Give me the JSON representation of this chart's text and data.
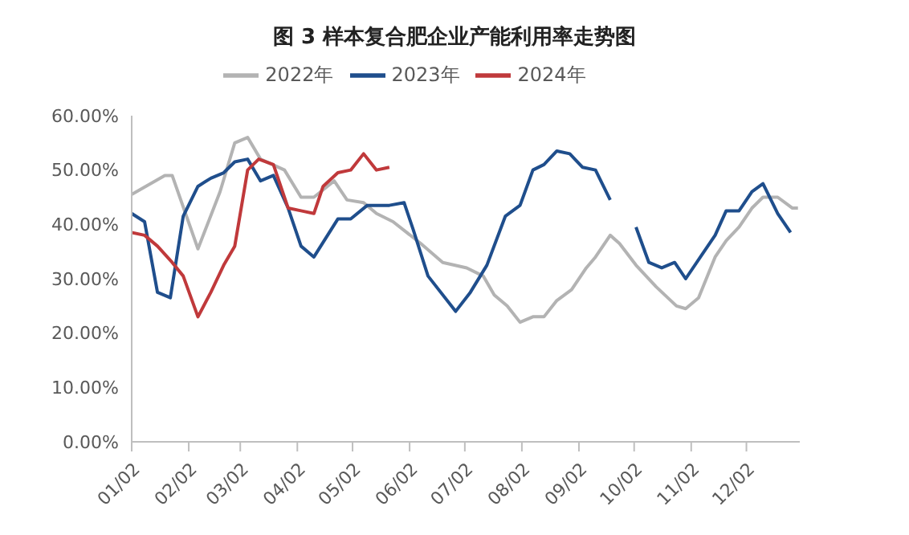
{
  "chart_data": {
    "type": "line",
    "title": "图 3  样本复合肥企业产能利用率走势图",
    "series": [
      {
        "name": "2022年",
        "color": "#b3b3b3",
        "x": [
          "--01-02",
          "--01-20",
          "--01-24",
          "--02-07",
          "--02-19",
          "--02-27",
          "--03-06",
          "--03-13",
          "--03-26",
          "--04-04",
          "--04-11",
          "--04-22",
          "--04-29",
          "--05-08",
          "--05-15",
          "--05-24",
          "--06-08",
          "--06-20",
          "--07-03",
          "--07-12",
          "--07-18",
          "--07-25",
          "--08-01",
          "--08-08",
          "--08-14",
          "--08-21",
          "--08-29",
          "--09-06",
          "--09-11",
          "--09-19",
          "--09-24",
          "--10-03",
          "--10-14",
          "--10-25",
          "--10-30",
          "--11-06",
          "--11-15",
          "--11-21",
          "--11-28",
          "--12-05",
          "--12-11",
          "--12-19",
          "--12-27",
          "--12-30"
        ],
        "values": [
          45.5,
          49,
          49,
          35.5,
          46,
          55,
          56,
          52,
          50,
          45,
          45,
          48,
          44.5,
          44,
          42,
          40.5,
          36.5,
          33,
          32,
          30.5,
          27,
          25,
          22,
          23,
          23,
          26,
          28,
          32,
          34,
          38,
          36.5,
          32.5,
          28.5,
          25,
          24.5,
          26.5,
          34,
          37,
          39.5,
          43,
          45,
          45,
          43,
          43
        ]
      },
      {
        "name": "2023年",
        "color": "#1f4e8c",
        "x": [
          "--01-02",
          "--01-09",
          "--01-16",
          "--01-23",
          "--01-30",
          "--02-07",
          "--02-14",
          "--02-21",
          "--02-27",
          "--03-06",
          "--03-13",
          "--03-20",
          "--03-28",
          "--04-04",
          "--04-11",
          "--04-24",
          "--05-01",
          "--05-10",
          "--05-22",
          "--05-30",
          "--06-04",
          "--06-12",
          "--06-27",
          "--07-05",
          "--07-14",
          "--07-24",
          "--08-01",
          "--08-08",
          "--08-14",
          "--08-21",
          "--08-28",
          "--09-04",
          "--09-11",
          "--09-19",
          "--09-25",
          "--10-03",
          "--10-10",
          "--10-17",
          "--10-24",
          "--10-30",
          "--11-07",
          "--11-15",
          "--11-21",
          "--11-28",
          "--12-05",
          "--12-11",
          "--12-19",
          "--12-26"
        ],
        "values": [
          42,
          40.5,
          27.5,
          26.5,
          41.5,
          47,
          48.5,
          49.5,
          51.5,
          52,
          48,
          49,
          43,
          36,
          34,
          41,
          41,
          43.5,
          43.5,
          44,
          39,
          30.5,
          24,
          27.5,
          32.5,
          41.5,
          43.5,
          50,
          51,
          53.5,
          53,
          50.5,
          50,
          44.5,
          null,
          39.5,
          33,
          32,
          33,
          30,
          34,
          38,
          42.5,
          42.5,
          46,
          47.5,
          42,
          38.5
        ]
      },
      {
        "name": "2024年",
        "color": "#c0393b",
        "x": [
          "--01-02",
          "--01-09",
          "--01-16",
          "--01-24",
          "--01-30",
          "--02-07",
          "--02-14",
          "--02-21",
          "--02-27",
          "--03-06",
          "--03-12",
          "--03-20",
          "--03-28",
          "--04-04",
          "--04-11",
          "--04-16",
          "--04-24",
          "--05-01",
          "--05-08",
          "--05-15",
          "--05-22"
        ],
        "values": [
          38.5,
          38,
          36,
          33,
          30.5,
          23,
          27.5,
          32.5,
          36,
          50,
          52,
          51,
          43,
          42.5,
          42,
          47,
          49.5,
          50,
          53,
          50,
          50.5
        ]
      }
    ],
    "xlim": [
      "--01-02",
      "--12-31"
    ],
    "xticks": [
      {
        "value": "--01-02",
        "label": "01/02"
      },
      {
        "value": "--02-02",
        "label": "02/02"
      },
      {
        "value": "--03-02",
        "label": "03/02"
      },
      {
        "value": "--04-02",
        "label": "04/02"
      },
      {
        "value": "--05-02",
        "label": "05/02"
      },
      {
        "value": "--06-02",
        "label": "06/02"
      },
      {
        "value": "--07-02",
        "label": "07/02"
      },
      {
        "value": "--08-02",
        "label": "08/02"
      },
      {
        "value": "--09-02",
        "label": "09/02"
      },
      {
        "value": "--10-02",
        "label": "10/02"
      },
      {
        "value": "--11-02",
        "label": "11/02"
      },
      {
        "value": "--12-02",
        "label": "12/02"
      }
    ],
    "ylim": [
      0,
      60
    ],
    "yticks": [
      {
        "value": 0,
        "label": "0.00%"
      },
      {
        "value": 10,
        "label": "10.00%"
      },
      {
        "value": 20,
        "label": "20.00%"
      },
      {
        "value": 30,
        "label": "30.00%"
      },
      {
        "value": 40,
        "label": "40.00%"
      },
      {
        "value": 50,
        "label": "50.00%"
      },
      {
        "value": 60,
        "label": "60.00%"
      }
    ],
    "legend": "top",
    "grid": false,
    "marker": "none",
    "line_style": "solid"
  }
}
